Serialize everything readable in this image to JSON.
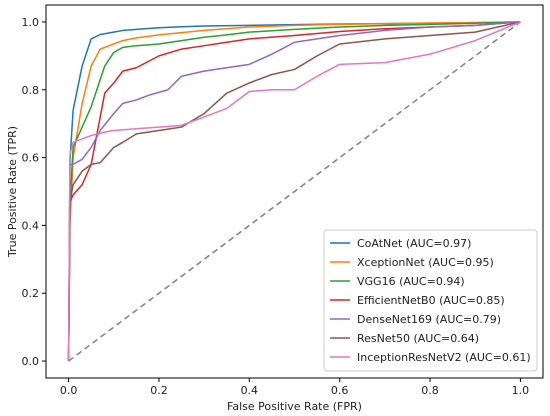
{
  "chart_data": {
    "type": "line",
    "title": "",
    "xlabel": "False Positive Rate (FPR)",
    "ylabel": "True Positive Rate (TPR)",
    "xlim": [
      -0.05,
      1.05
    ],
    "ylim": [
      -0.05,
      1.05
    ],
    "x_ticks": [
      "0.0",
      "0.2",
      "0.4",
      "0.6",
      "0.8",
      "1.0"
    ],
    "y_ticks": [
      "0.0",
      "0.2",
      "0.4",
      "0.6",
      "0.8",
      "1.0"
    ],
    "grid": false,
    "legend_position": "lower-right",
    "reference_line": {
      "x": [
        0,
        1
      ],
      "y": [
        0,
        1
      ],
      "style": "dashed",
      "color": "#808080"
    },
    "series": [
      {
        "name": "CoAtNet (AUC=0.97)",
        "color": "#1f77b4",
        "x": [
          0,
          0.003,
          0.01,
          0.03,
          0.05,
          0.07,
          0.1,
          0.12,
          0.15,
          0.2,
          0.25,
          0.3,
          0.4,
          0.5,
          0.6,
          0.7,
          0.8,
          0.9,
          1.0
        ],
        "y": [
          0,
          0.59,
          0.74,
          0.87,
          0.95,
          0.963,
          0.97,
          0.975,
          0.978,
          0.983,
          0.986,
          0.988,
          0.99,
          0.992,
          0.994,
          0.995,
          0.996,
          0.998,
          1.0
        ]
      },
      {
        "name": "XceptionNet (AUC=0.95)",
        "color": "#ff7f0e",
        "x": [
          0,
          0.003,
          0.01,
          0.03,
          0.05,
          0.07,
          0.1,
          0.12,
          0.15,
          0.2,
          0.3,
          0.4,
          0.5,
          0.6,
          0.7,
          0.8,
          0.9,
          1.0
        ],
        "y": [
          0,
          0.4,
          0.6,
          0.76,
          0.87,
          0.92,
          0.935,
          0.945,
          0.953,
          0.962,
          0.975,
          0.985,
          0.99,
          0.993,
          0.995,
          0.997,
          0.998,
          1.0
        ]
      },
      {
        "name": "VGG16 (AUC=0.94)",
        "color": "#2ca02c",
        "x": [
          0,
          0.003,
          0.01,
          0.03,
          0.05,
          0.08,
          0.1,
          0.12,
          0.15,
          0.2,
          0.25,
          0.3,
          0.35,
          0.4,
          0.5,
          0.6,
          0.7,
          0.8,
          0.9,
          1.0
        ],
        "y": [
          0,
          0.46,
          0.63,
          0.69,
          0.75,
          0.87,
          0.91,
          0.925,
          0.93,
          0.935,
          0.945,
          0.955,
          0.962,
          0.97,
          0.978,
          0.985,
          0.99,
          0.993,
          0.996,
          1.0
        ]
      },
      {
        "name": "EfficientNetB0 (AUC=0.85)",
        "color": "#d62728",
        "x": [
          0,
          0.003,
          0.01,
          0.03,
          0.05,
          0.08,
          0.1,
          0.12,
          0.15,
          0.2,
          0.25,
          0.3,
          0.35,
          0.4,
          0.5,
          0.6,
          0.7,
          0.8,
          0.9,
          1.0
        ],
        "y": [
          0,
          0.47,
          0.49,
          0.52,
          0.58,
          0.79,
          0.82,
          0.855,
          0.865,
          0.9,
          0.92,
          0.93,
          0.94,
          0.95,
          0.96,
          0.972,
          0.98,
          0.985,
          0.99,
          1.0
        ]
      },
      {
        "name": "DenseNet169 (AUC=0.79)",
        "color": "#9467bd",
        "x": [
          0,
          0.003,
          0.01,
          0.03,
          0.05,
          0.07,
          0.1,
          0.12,
          0.15,
          0.18,
          0.22,
          0.25,
          0.3,
          0.35,
          0.4,
          0.45,
          0.5,
          0.6,
          0.7,
          0.8,
          0.9,
          1.0
        ],
        "y": [
          0,
          0.58,
          0.58,
          0.595,
          0.63,
          0.68,
          0.73,
          0.76,
          0.77,
          0.785,
          0.8,
          0.84,
          0.855,
          0.865,
          0.875,
          0.905,
          0.94,
          0.96,
          0.975,
          0.985,
          0.99,
          1.0
        ]
      },
      {
        "name": "ResNet50 (AUC=0.64)",
        "color": "#8c564b",
        "x": [
          0,
          0.003,
          0.01,
          0.03,
          0.05,
          0.07,
          0.1,
          0.12,
          0.15,
          0.2,
          0.25,
          0.3,
          0.35,
          0.4,
          0.45,
          0.5,
          0.55,
          0.6,
          0.7,
          0.8,
          0.9,
          1.0
        ],
        "y": [
          0,
          0.47,
          0.52,
          0.56,
          0.58,
          0.585,
          0.63,
          0.645,
          0.67,
          0.68,
          0.69,
          0.73,
          0.79,
          0.82,
          0.845,
          0.86,
          0.9,
          0.935,
          0.95,
          0.96,
          0.97,
          1.0
        ]
      },
      {
        "name": "InceptionResNetV2 (AUC=0.61)",
        "color": "#e377c2",
        "x": [
          0,
          0.003,
          0.01,
          0.03,
          0.05,
          0.08,
          0.1,
          0.15,
          0.2,
          0.25,
          0.3,
          0.35,
          0.4,
          0.45,
          0.5,
          0.55,
          0.6,
          0.7,
          0.8,
          0.9,
          1.0
        ],
        "y": [
          0,
          0.61,
          0.645,
          0.655,
          0.665,
          0.675,
          0.68,
          0.685,
          0.69,
          0.695,
          0.72,
          0.745,
          0.795,
          0.8,
          0.8,
          0.84,
          0.875,
          0.88,
          0.905,
          0.945,
          1.0
        ]
      }
    ]
  }
}
